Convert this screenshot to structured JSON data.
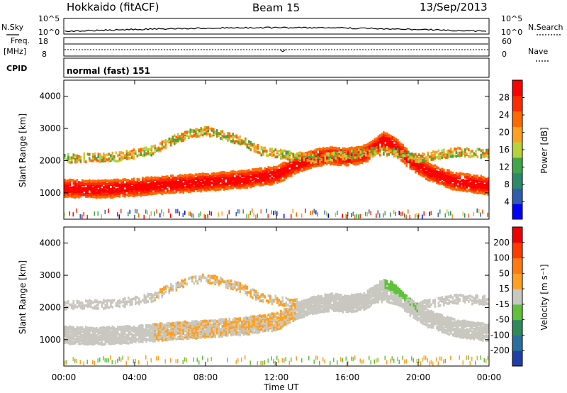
{
  "header": {
    "station": "Hokkaido (fitACF)",
    "beam": "Beam 15",
    "date": "13/Sep/2013"
  },
  "small_panels": {
    "nsky_label": "N.Sky",
    "nsearch_label": "N.Search",
    "freq_label_1": "Freq.",
    "freq_label_2": "[MHz]",
    "nave_label": "Nave",
    "cpid_label": "CPID",
    "mode_text": "normal (fast) 151",
    "noise_ticks_left": [
      "10^5",
      "10^0"
    ],
    "noise_ticks_right": [
      "10^5",
      "10^0"
    ],
    "freq_ticks_left": [
      "18",
      "8"
    ],
    "nave_ticks_right": [
      "60",
      "0"
    ]
  },
  "chart_data": [
    {
      "type": "heatmap",
      "title": "Power",
      "ylabel": "Slant Range [km]",
      "xlabel": "",
      "ylim": [
        180,
        4500
      ],
      "y_ticks": [
        "1000",
        "2000",
        "3000",
        "4000"
      ],
      "colorbar_label": "Power [dB]",
      "colorbar_ticks": [
        "4",
        "8",
        "12",
        "16",
        "20",
        "24",
        "28"
      ],
      "colorbar_colors": [
        "#0000ff",
        "#2f5cb0",
        "#2a8a6a",
        "#3fa64a",
        "#b7d33a",
        "#ffa020",
        "#ff6a00",
        "#ff2a00",
        "#ff0000"
      ],
      "echo_bands": [
        {
          "name": "main",
          "points": [
            [
              0.0,
              1130
            ],
            [
              2.0,
              1100
            ],
            [
              4.0,
              1160
            ],
            [
              6.0,
              1250
            ],
            [
              8.0,
              1320
            ],
            [
              10.0,
              1400
            ],
            [
              12.0,
              1550
            ],
            [
              13.0,
              1850
            ],
            [
              14.0,
              2050
            ],
            [
              15.0,
              2150
            ],
            [
              16.0,
              2100
            ],
            [
              17.0,
              2200
            ],
            [
              18.0,
              2600
            ],
            [
              18.5,
              2500
            ],
            [
              19.5,
              2000
            ],
            [
              20.5,
              1650
            ],
            [
              22.0,
              1350
            ],
            [
              24.0,
              1200
            ]
          ]
        },
        {
          "name": "upper",
          "points": [
            [
              0.0,
              2050
            ],
            [
              3.0,
              2100
            ],
            [
              5.0,
              2300
            ],
            [
              6.0,
              2600
            ],
            [
              7.0,
              2800
            ],
            [
              8.0,
              2900
            ],
            [
              10.0,
              2600
            ],
            [
              11.0,
              2300
            ],
            [
              12.5,
              2150
            ],
            [
              14.0,
              2050
            ],
            [
              16.0,
              2150
            ],
            [
              18.0,
              2300
            ],
            [
              20.0,
              2050
            ],
            [
              22.0,
              2250
            ],
            [
              24.0,
              2200
            ]
          ]
        }
      ]
    },
    {
      "type": "heatmap",
      "title": "Velocity",
      "ylabel": "Slant Range [km]",
      "xlabel": "Time UT",
      "ylim": [
        180,
        4500
      ],
      "y_ticks": [
        "1000",
        "2000",
        "3000",
        "4000"
      ],
      "x_ticks": [
        "00:00",
        "04:00",
        "08:00",
        "12:00",
        "16:00",
        "20:00",
        "00:00"
      ],
      "colorbar_label": "Velocity [m s⁻¹]",
      "colorbar_ticks": [
        "200",
        "100",
        "50",
        "15",
        "-15",
        "-50",
        "-100",
        "-200"
      ],
      "colorbar_colors": [
        "#1f3fa8",
        "#2a6fa0",
        "#2e8a5a",
        "#5fc23a",
        "#c8c8c0",
        "#ffa020",
        "#ff7a10",
        "#ff3a00",
        "#ee0000"
      ]
    }
  ]
}
